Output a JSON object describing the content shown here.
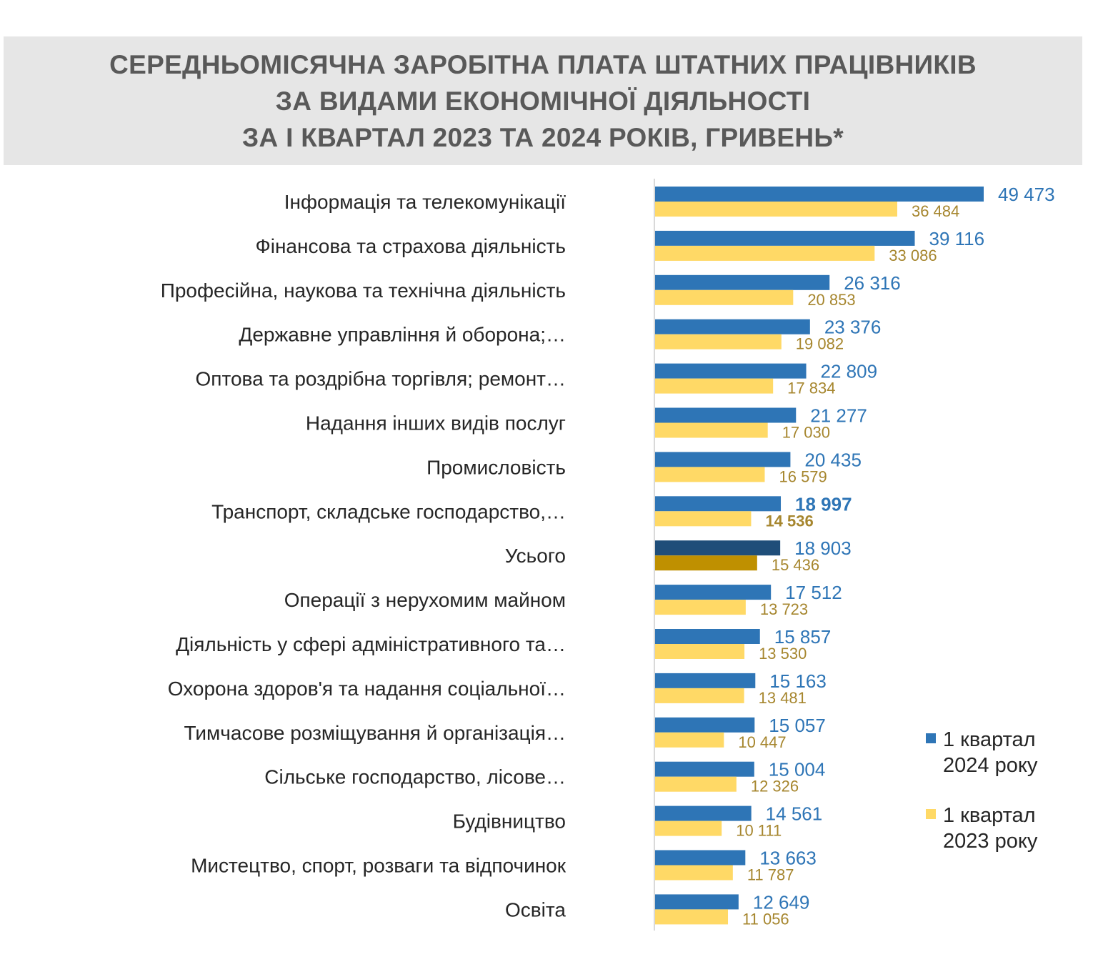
{
  "title_lines": [
    "СЕРЕДНЬОМІСЯЧНА ЗАРОБІТНА ПЛАТА ШТАТНИХ ПРАЦІВНИКІВ",
    "ЗА ВИДАМИ ЕКОНОМІЧНОЇ ДІЯЛЬНОСТІ",
    "ЗА І КВАРТАЛ 2023 ТА 2024 РОКІВ, ГРИВЕНЬ*"
  ],
  "legend": [
    {
      "line1": "1 квартал",
      "line2": "2024 року",
      "color": "#2e75b6"
    },
    {
      "line1": "1 квартал",
      "line2": "2023 року",
      "color": "#ffd966"
    }
  ],
  "chart_data": {
    "type": "bar",
    "orientation": "horizontal",
    "title": "СЕРЕДНЬОМІСЯЧНА ЗАРОБІТНА ПЛАТА ШТАТНИХ ПРАЦІВНИКІВ ЗА ВИДАМИ ЕКОНОМІЧНОЇ ДІЯЛЬНОСТІ ЗА І КВАРТАЛ 2023 ТА 2024 РОКІВ, ГРИВЕНЬ*",
    "categories": [
      "Інформація та телекомунікації",
      "Фінансова та страхова діяльність",
      "Професійна, наукова та технічна діяльність",
      "Державне управління й оборона;…",
      "Оптова та роздрібна торгівля; ремонт…",
      "Надання інших видів послуг",
      "Промисловість",
      "Транспорт, складське господарство,…",
      "Усього",
      "Операції з нерухомим майном",
      "Діяльність у сфері адміністративного та…",
      "Охорона здоров'я та надання соціальної…",
      "Тимчасове розміщування й організація…",
      "Сільське господарство, лісове…",
      "Будівництво",
      "Мистецтво, спорт, розваги та відпочинок",
      "Освіта"
    ],
    "series": [
      {
        "name": "1 квартал 2024 року",
        "color": "#2e75b6",
        "highlight_color": "#1f4e79",
        "values": [
          49473,
          39116,
          26316,
          23376,
          22809,
          21277,
          20435,
          18997,
          18903,
          17512,
          15857,
          15163,
          15057,
          15004,
          14561,
          13663,
          12649
        ],
        "labels": [
          "49 473",
          "39 116",
          "26 316",
          "23 376",
          "22 809",
          "21 277",
          "20 435",
          "18 997",
          "18 903",
          "17 512",
          "15 857",
          "15 163",
          "15 057",
          "15 004",
          "14 561",
          "13 663",
          "12 649"
        ]
      },
      {
        "name": "1 квартал 2023 року",
        "color": "#ffd966",
        "highlight_color": "#bf9000",
        "values": [
          36484,
          33086,
          20853,
          19082,
          17834,
          17030,
          16579,
          14536,
          15436,
          13723,
          13530,
          13481,
          10447,
          12326,
          10111,
          11787,
          11056
        ],
        "labels": [
          "36 484",
          "33 086",
          "20 853",
          "19 082",
          "17 834",
          "17 030",
          "16 579",
          "14 536",
          "15 436",
          "13 723",
          "13 530",
          "13 481",
          "10 447",
          "12 326",
          "10 111",
          "11 787",
          "11 056"
        ]
      }
    ],
    "highlight_category": "Усього",
    "bold_label_category": "Транспорт, складське господарство,…",
    "xlim": [
      0,
      49473
    ],
    "grid": false,
    "legend_position": "right-bottom"
  }
}
